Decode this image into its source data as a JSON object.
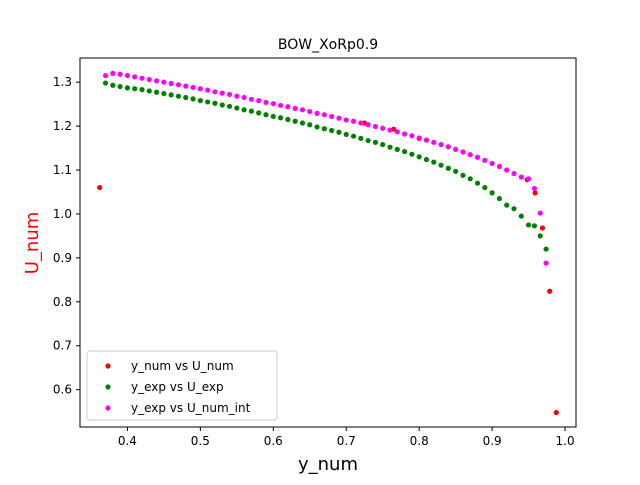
{
  "chart_data": {
    "type": "scatter",
    "title": "BOW_XoRp0.9",
    "xlabel": "y_num",
    "ylabel": "U_num",
    "xlim": [
      0.335,
      1.015
    ],
    "ylim": [
      0.515,
      1.355
    ],
    "xticks": [
      0.4,
      0.5,
      0.6,
      0.7,
      0.8,
      0.9,
      1.0
    ],
    "xtick_labels": [
      "0.4",
      "0.5",
      "0.6",
      "0.7",
      "0.8",
      "0.9",
      "1.0"
    ],
    "yticks": [
      0.6,
      0.7,
      0.8,
      0.9,
      1.0,
      1.1,
      1.2,
      1.3
    ],
    "ytick_labels": [
      "0.6",
      "0.7",
      "0.8",
      "0.9",
      "1.0",
      "1.1",
      "1.2",
      "1.3"
    ],
    "grid": false,
    "legend_position": "lower-left",
    "colors": {
      "ylabel": "#ff0000"
    },
    "series": [
      {
        "name": "y_num vs U_num",
        "color": "#ff0000",
        "points": [
          [
            0.362,
            1.06
          ],
          [
            0.725,
            1.207
          ],
          [
            0.765,
            1.193
          ],
          [
            0.8,
            1.172
          ],
          [
            0.948,
            1.078
          ],
          [
            0.959,
            1.048
          ],
          [
            0.969,
            0.968
          ],
          [
            0.979,
            0.824
          ],
          [
            0.988,
            0.548
          ]
        ]
      },
      {
        "name": "y_exp vs U_exp",
        "color": "#008000",
        "points": [
          [
            0.37,
            1.298
          ],
          [
            0.38,
            1.293
          ],
          [
            0.39,
            1.29
          ],
          [
            0.4,
            1.287
          ],
          [
            0.41,
            1.285
          ],
          [
            0.42,
            1.283
          ],
          [
            0.43,
            1.28
          ],
          [
            0.44,
            1.277
          ],
          [
            0.45,
            1.274
          ],
          [
            0.46,
            1.271
          ],
          [
            0.47,
            1.268
          ],
          [
            0.48,
            1.265
          ],
          [
            0.49,
            1.262
          ],
          [
            0.5,
            1.258
          ],
          [
            0.51,
            1.255
          ],
          [
            0.52,
            1.252
          ],
          [
            0.53,
            1.248
          ],
          [
            0.54,
            1.245
          ],
          [
            0.55,
            1.241
          ],
          [
            0.56,
            1.237
          ],
          [
            0.57,
            1.234
          ],
          [
            0.58,
            1.23
          ],
          [
            0.59,
            1.226
          ],
          [
            0.6,
            1.222
          ],
          [
            0.61,
            1.219
          ],
          [
            0.62,
            1.215
          ],
          [
            0.63,
            1.211
          ],
          [
            0.64,
            1.207
          ],
          [
            0.65,
            1.203
          ],
          [
            0.66,
            1.198
          ],
          [
            0.67,
            1.194
          ],
          [
            0.68,
            1.19
          ],
          [
            0.69,
            1.186
          ],
          [
            0.7,
            1.181
          ],
          [
            0.71,
            1.177
          ],
          [
            0.72,
            1.172
          ],
          [
            0.73,
            1.167
          ],
          [
            0.74,
            1.163
          ],
          [
            0.75,
            1.158
          ],
          [
            0.76,
            1.152
          ],
          [
            0.77,
            1.147
          ],
          [
            0.78,
            1.142
          ],
          [
            0.79,
            1.136
          ],
          [
            0.8,
            1.13
          ],
          [
            0.81,
            1.124
          ],
          [
            0.82,
            1.118
          ],
          [
            0.83,
            1.111
          ],
          [
            0.84,
            1.104
          ],
          [
            0.85,
            1.097
          ],
          [
            0.86,
            1.088
          ],
          [
            0.87,
            1.08
          ],
          [
            0.88,
            1.07
          ],
          [
            0.89,
            1.06
          ],
          [
            0.9,
            1.048
          ],
          [
            0.91,
            1.035
          ],
          [
            0.92,
            1.02
          ],
          [
            0.93,
            1.012
          ],
          [
            0.94,
            0.995
          ],
          [
            0.95,
            0.975
          ],
          [
            0.958,
            0.973
          ],
          [
            0.966,
            0.95
          ],
          [
            0.974,
            0.92
          ]
        ]
      },
      {
        "name": "y_exp vs U_num_int",
        "color": "#ff00ff",
        "points": [
          [
            0.37,
            1.315
          ],
          [
            0.38,
            1.32
          ],
          [
            0.39,
            1.318
          ],
          [
            0.4,
            1.315
          ],
          [
            0.41,
            1.312
          ],
          [
            0.42,
            1.309
          ],
          [
            0.43,
            1.306
          ],
          [
            0.44,
            1.303
          ],
          [
            0.45,
            1.3
          ],
          [
            0.46,
            1.297
          ],
          [
            0.47,
            1.294
          ],
          [
            0.48,
            1.291
          ],
          [
            0.49,
            1.288
          ],
          [
            0.5,
            1.285
          ],
          [
            0.51,
            1.282
          ],
          [
            0.52,
            1.278
          ],
          [
            0.53,
            1.275
          ],
          [
            0.54,
            1.272
          ],
          [
            0.55,
            1.268
          ],
          [
            0.56,
            1.265
          ],
          [
            0.57,
            1.261
          ],
          [
            0.58,
            1.258
          ],
          [
            0.59,
            1.254
          ],
          [
            0.6,
            1.251
          ],
          [
            0.61,
            1.247
          ],
          [
            0.62,
            1.244
          ],
          [
            0.63,
            1.24
          ],
          [
            0.64,
            1.237
          ],
          [
            0.65,
            1.233
          ],
          [
            0.66,
            1.229
          ],
          [
            0.67,
            1.226
          ],
          [
            0.68,
            1.222
          ],
          [
            0.69,
            1.218
          ],
          [
            0.7,
            1.214
          ],
          [
            0.71,
            1.211
          ],
          [
            0.72,
            1.207
          ],
          [
            0.73,
            1.203
          ],
          [
            0.74,
            1.199
          ],
          [
            0.75,
            1.195
          ],
          [
            0.76,
            1.191
          ],
          [
            0.77,
            1.187
          ],
          [
            0.78,
            1.182
          ],
          [
            0.79,
            1.178
          ],
          [
            0.8,
            1.173
          ],
          [
            0.81,
            1.168
          ],
          [
            0.82,
            1.163
          ],
          [
            0.83,
            1.158
          ],
          [
            0.84,
            1.153
          ],
          [
            0.85,
            1.147
          ],
          [
            0.86,
            1.141
          ],
          [
            0.87,
            1.135
          ],
          [
            0.88,
            1.129
          ],
          [
            0.89,
            1.122
          ],
          [
            0.9,
            1.115
          ],
          [
            0.91,
            1.108
          ],
          [
            0.92,
            1.1
          ],
          [
            0.93,
            1.092
          ],
          [
            0.94,
            1.084
          ],
          [
            0.95,
            1.08
          ],
          [
            0.958,
            1.058
          ],
          [
            0.966,
            1.002
          ],
          [
            0.974,
            0.888
          ]
        ]
      }
    ]
  }
}
